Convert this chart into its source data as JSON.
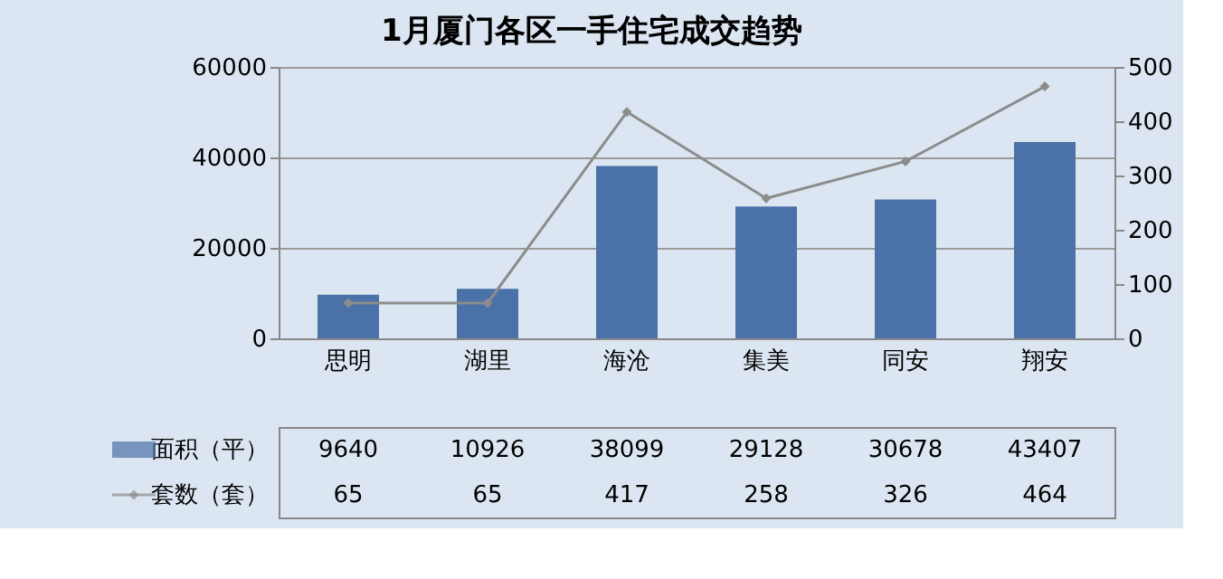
{
  "chart_data": {
    "type": "bar",
    "title": "1月厦门各区一手住宅成交趋势",
    "categories": [
      "思明",
      "湖里",
      "海沧",
      "集美",
      "同安",
      "翔安"
    ],
    "series": [
      {
        "name": "面积（平）",
        "color": "#4a71a8",
        "values": [
          9640,
          10926,
          38099,
          29128,
          30678,
          43407
        ]
      },
      {
        "name": "套数（套）",
        "type": "line",
        "axis": "y2",
        "color": "#8c8c8c",
        "marker": "diamond",
        "values": [
          65,
          65,
          417,
          258,
          326,
          464
        ]
      }
    ],
    "ylim": [
      0,
      60000
    ],
    "yticks": [
      0,
      20000,
      40000,
      60000
    ],
    "y2lim": [
      0,
      500
    ],
    "y2ticks": [
      0,
      100,
      200,
      300,
      400,
      500
    ],
    "grid": "y",
    "legend": "bottom",
    "data_labels": true
  }
}
